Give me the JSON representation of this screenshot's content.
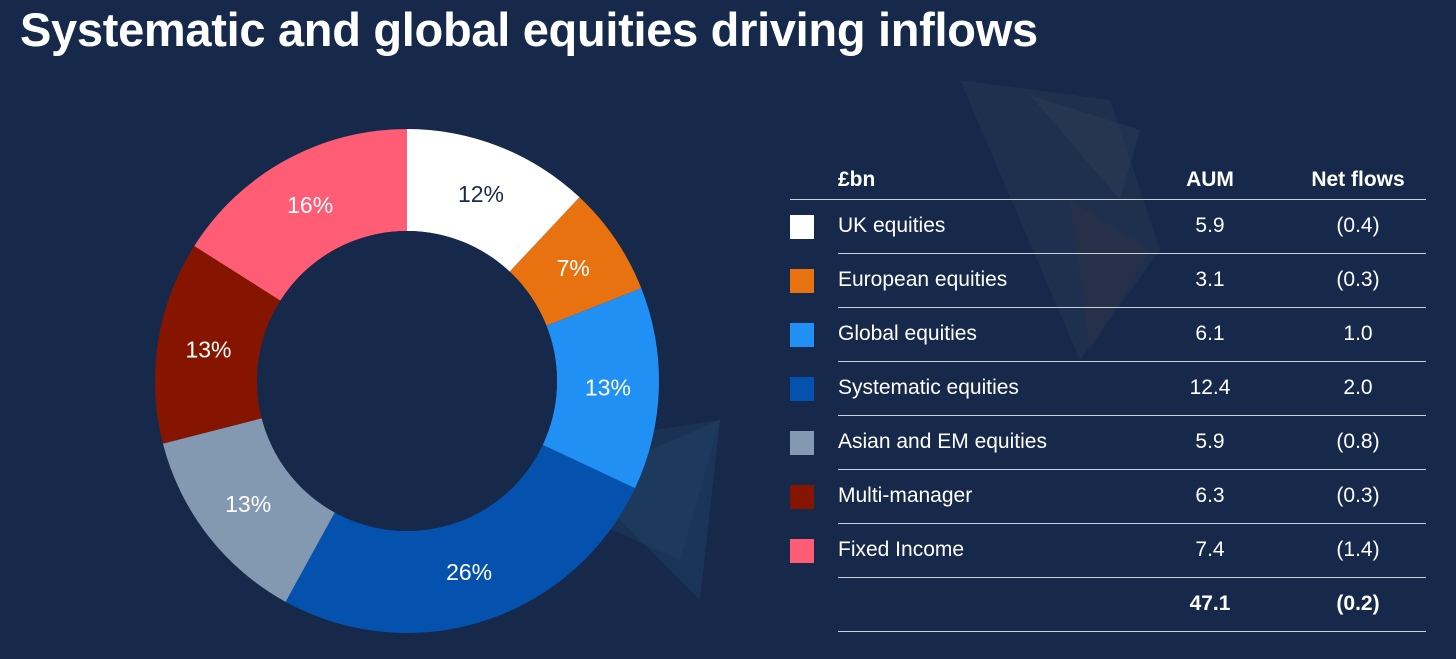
{
  "title": "Systematic and global equities driving inflows",
  "colors": {
    "background": "#16294a",
    "hole": "#16294a",
    "text_dark": "#1b2b4b",
    "text_light": "#ffffff"
  },
  "chart_data": {
    "type": "pie",
    "variant": "donut",
    "title": "",
    "slices": [
      {
        "label": "UK equities",
        "value": 12,
        "display": "12%",
        "color": "#ffffff"
      },
      {
        "label": "European equities",
        "value": 7,
        "display": "7%",
        "color": "#e8720f"
      },
      {
        "label": "Global equities",
        "value": 13,
        "display": "13%",
        "color": "#2090f5"
      },
      {
        "label": "Systematic equities",
        "value": 26,
        "display": "26%",
        "color": "#0452ad"
      },
      {
        "label": "Asian and EM equities",
        "value": 13,
        "display": "13%",
        "color": "#8398b1"
      },
      {
        "label": "Multi-manager",
        "value": 13,
        "display": "13%",
        "color": "#861500"
      },
      {
        "label": "Fixed Income",
        "value": 16,
        "display": "16%",
        "color": "#ff5c75"
      }
    ]
  },
  "table": {
    "unit_header": "£bn",
    "aum_header": "AUM",
    "flows_header": "Net flows",
    "rows": [
      {
        "name": "UK equities",
        "aum": "5.9",
        "flows": "(0.4)",
        "color": "#ffffff"
      },
      {
        "name": "European equities",
        "aum": "3.1",
        "flows": "(0.3)",
        "color": "#e8720f"
      },
      {
        "name": "Global equities",
        "aum": "6.1",
        "flows": "1.0",
        "color": "#2090f5"
      },
      {
        "name": "Systematic equities",
        "aum": "12.4",
        "flows": "2.0",
        "color": "#0452ad"
      },
      {
        "name": "Asian and EM equities",
        "aum": "5.9",
        "flows": "(0.8)",
        "color": "#8398b1"
      },
      {
        "name": "Multi-manager",
        "aum": "6.3",
        "flows": "(0.3)",
        "color": "#861500"
      },
      {
        "name": "Fixed Income",
        "aum": "7.4",
        "flows": "(1.4)",
        "color": "#ff5c75"
      }
    ],
    "total": {
      "aum": "47.1",
      "flows": "(0.2)"
    }
  }
}
